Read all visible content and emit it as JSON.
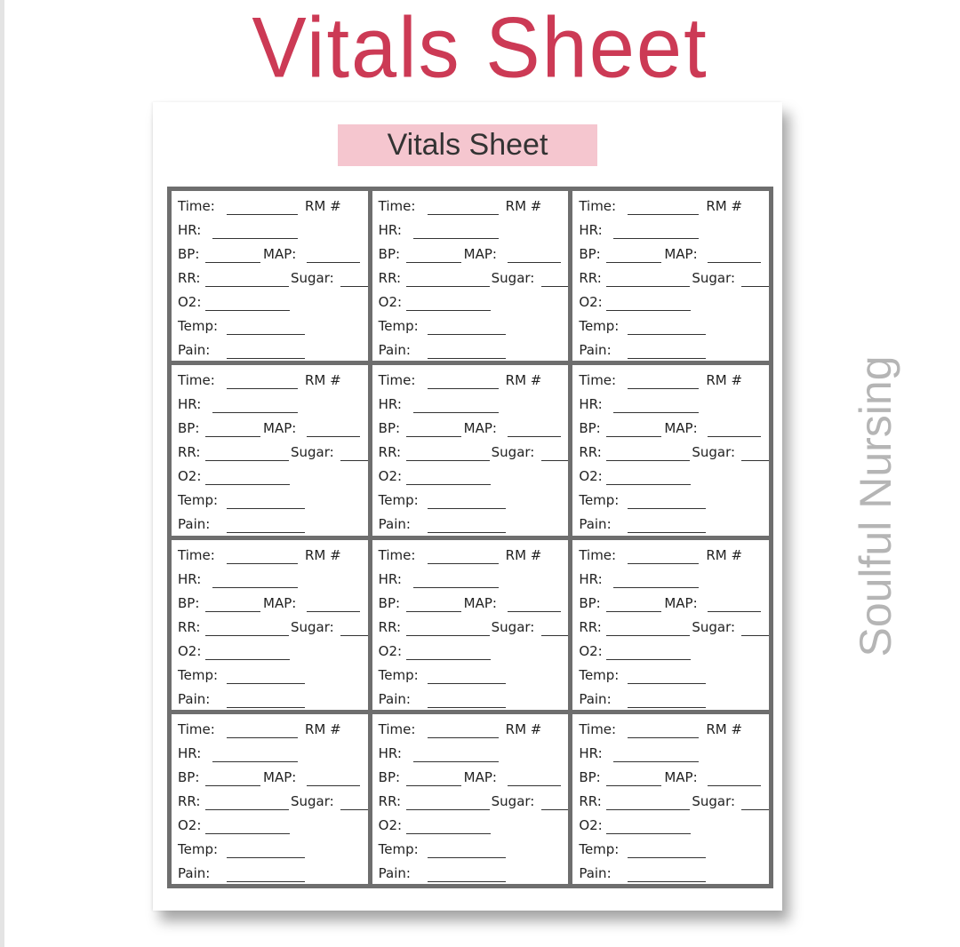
{
  "header": {
    "title": "Vitals Sheet"
  },
  "sheet": {
    "banner_title": "Vitals Sheet",
    "fields": {
      "time": "Time:",
      "room": "RM #",
      "hr": "HR:",
      "bp": "BP:",
      "map": "MAP:",
      "rr": "RR:",
      "sugar": "Sugar:",
      "o2": "O2:",
      "temp": "Temp:",
      "pain": "Pain:"
    },
    "grid": {
      "rows": 4,
      "columns": 3
    }
  },
  "watermark": "Soulful Nursing",
  "colors": {
    "title": "#cc3a55",
    "banner": "#f5c6cf",
    "grid_border": "#6e6e6e"
  }
}
